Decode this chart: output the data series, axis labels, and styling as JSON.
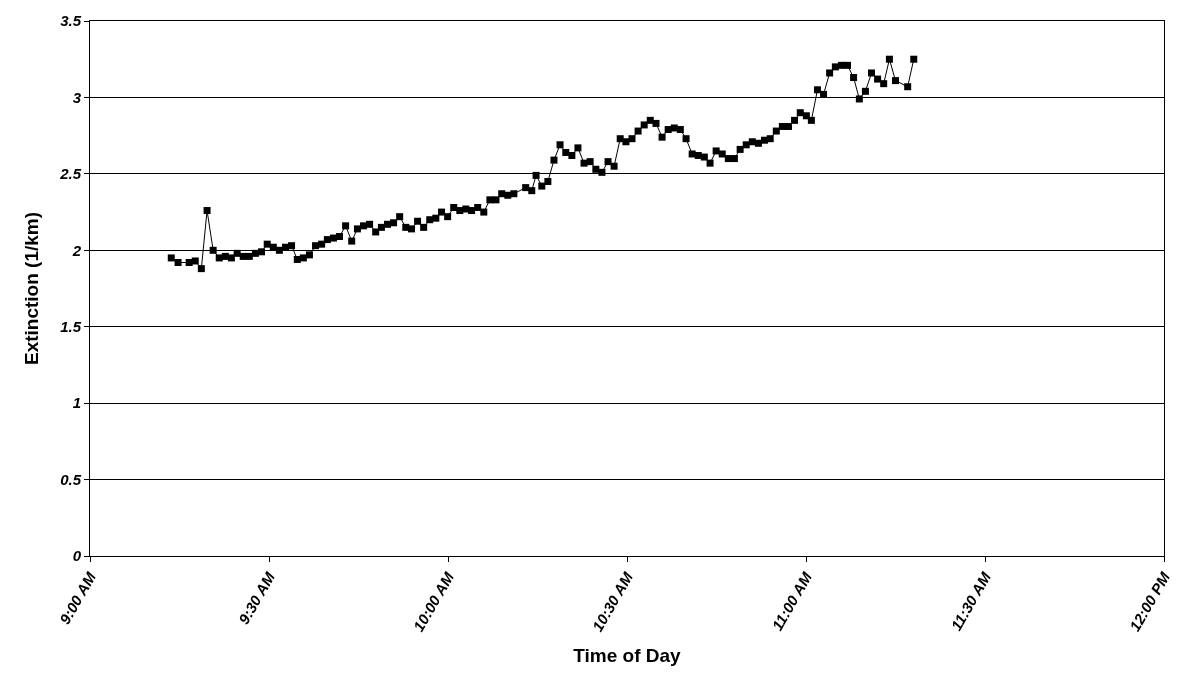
{
  "chart_data": {
    "type": "line",
    "xlabel": "Time of Day",
    "ylabel": "Extinction (1/km)",
    "x": [
      9.227,
      9.246,
      9.277,
      9.294,
      9.311,
      9.327,
      9.344,
      9.361,
      9.378,
      9.395,
      9.411,
      9.428,
      9.445,
      9.462,
      9.479,
      9.495,
      9.512,
      9.529,
      9.546,
      9.563,
      9.579,
      9.596,
      9.613,
      9.63,
      9.647,
      9.663,
      9.68,
      9.697,
      9.714,
      9.731,
      9.747,
      9.764,
      9.781,
      9.798,
      9.814,
      9.831,
      9.848,
      9.865,
      9.882,
      9.898,
      9.915,
      9.932,
      9.949,
      9.966,
      9.982,
      9.999,
      10.016,
      10.033,
      10.05,
      10.066,
      10.083,
      10.1,
      10.117,
      10.134,
      10.15,
      10.167,
      10.184,
      10.217,
      10.234,
      10.246,
      10.262,
      10.279,
      10.296,
      10.313,
      10.329,
      10.346,
      10.363,
      10.38,
      10.397,
      10.413,
      10.43,
      10.447,
      10.464,
      10.481,
      10.497,
      10.514,
      10.531,
      10.548,
      10.565,
      10.581,
      10.598,
      10.615,
      10.632,
      10.649,
      10.665,
      10.682,
      10.699,
      10.716,
      10.732,
      10.749,
      10.766,
      10.783,
      10.8,
      10.816,
      10.833,
      10.85,
      10.867,
      10.884,
      10.9,
      10.917,
      10.934,
      10.951,
      10.968,
      10.984,
      11.001,
      11.015,
      11.032,
      11.049,
      11.066,
      11.082,
      11.099,
      11.116,
      11.133,
      11.149,
      11.166,
      11.183,
      11.2,
      11.217,
      11.233,
      11.25,
      11.284,
      11.301
    ],
    "series": [
      {
        "color": "#000000",
        "values": [
          1.95,
          1.92,
          1.92,
          1.93,
          1.88,
          2.26,
          2.0,
          1.95,
          1.96,
          1.95,
          1.98,
          1.96,
          1.96,
          1.98,
          1.99,
          2.04,
          2.02,
          2.0,
          2.02,
          2.03,
          1.94,
          1.95,
          1.97,
          2.03,
          2.04,
          2.07,
          2.08,
          2.09,
          2.16,
          2.06,
          2.14,
          2.16,
          2.17,
          2.12,
          2.15,
          2.17,
          2.18,
          2.22,
          2.15,
          2.14,
          2.19,
          2.15,
          2.2,
          2.21,
          2.25,
          2.22,
          2.28,
          2.26,
          2.27,
          2.26,
          2.28,
          2.25,
          2.33,
          2.33,
          2.37,
          2.36,
          2.37,
          2.41,
          2.39,
          2.49,
          2.42,
          2.45,
          2.59,
          2.69,
          2.64,
          2.62,
          2.67,
          2.57,
          2.58,
          2.53,
          2.51,
          2.58,
          2.55,
          2.73,
          2.71,
          2.73,
          2.78,
          2.82,
          2.85,
          2.83,
          2.74,
          2.79,
          2.8,
          2.79,
          2.73,
          2.63,
          2.62,
          2.61,
          2.57,
          2.65,
          2.63,
          2.6,
          2.6,
          2.66,
          2.69,
          2.71,
          2.7,
          2.72,
          2.73,
          2.78,
          2.81,
          2.81,
          2.85,
          2.9,
          2.88,
          2.85,
          3.05,
          3.02,
          3.16,
          3.2,
          3.21,
          3.21,
          3.13,
          2.99,
          3.04,
          3.16,
          3.12,
          3.09,
          3.25,
          3.11,
          3.07,
          3.25
        ]
      }
    ],
    "xlim": [
      9,
      12
    ],
    "xticks": [
      {
        "value": 9,
        "label": "9:00 AM"
      },
      {
        "value": 9.5,
        "label": "9:30 AM"
      },
      {
        "value": 10,
        "label": "10:00 AM"
      },
      {
        "value": 10.5,
        "label": "10:30 AM"
      },
      {
        "value": 11,
        "label": "11:00 AM"
      },
      {
        "value": 11.5,
        "label": "11:30 AM"
      },
      {
        "value": 12,
        "label": "12:00 PM"
      }
    ],
    "ylim": [
      0,
      3.5
    ],
    "yticks": [
      0,
      0.5,
      1,
      1.5,
      2,
      2.5,
      3,
      3.5
    ],
    "grid": "y",
    "marker": "square",
    "line_style": "solid"
  }
}
